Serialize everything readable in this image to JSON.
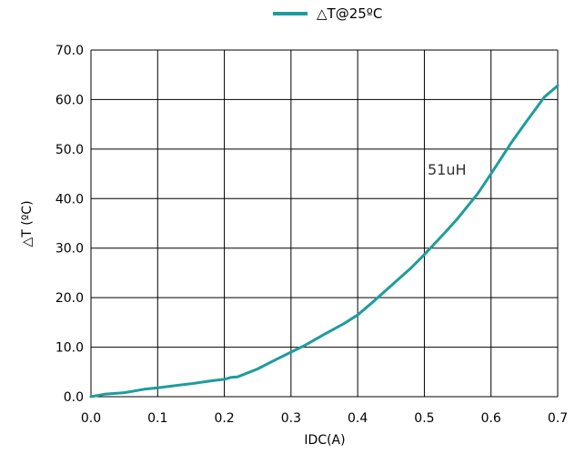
{
  "chart_data": {
    "type": "line",
    "xlabel": "IDC(A)",
    "ylabel": "△T (ºC)",
    "xlim": [
      0.0,
      0.7
    ],
    "ylim": [
      0.0,
      70.0
    ],
    "x_ticks": [
      "0.0",
      "0.1",
      "0.2",
      "0.3",
      "0.4",
      "0.5",
      "0.6",
      "0.7"
    ],
    "y_ticks": [
      "0.0",
      "10.0",
      "20.0",
      "30.0",
      "40.0",
      "50.0",
      "60.0",
      "70.0"
    ],
    "grid": true,
    "legend_position": "top-center",
    "annotation": "51uH",
    "series": [
      {
        "name": "△T@25ºC",
        "color": "#1f9c9c",
        "x": [
          0.0,
          0.02,
          0.05,
          0.08,
          0.1,
          0.13,
          0.15,
          0.18,
          0.2,
          0.21,
          0.22,
          0.25,
          0.27,
          0.3,
          0.32,
          0.35,
          0.38,
          0.4,
          0.42,
          0.45,
          0.48,
          0.5,
          0.53,
          0.55,
          0.58,
          0.6,
          0.63,
          0.65,
          0.68,
          0.7
        ],
        "y": [
          0.0,
          0.5,
          0.8,
          1.5,
          1.8,
          2.3,
          2.6,
          3.2,
          3.5,
          3.9,
          4.0,
          5.6,
          7.0,
          9.0,
          10.3,
          12.6,
          14.8,
          16.5,
          18.8,
          22.4,
          26.0,
          28.7,
          33.0,
          36.0,
          41.0,
          45.0,
          51.2,
          55.0,
          60.5,
          62.8
        ]
      }
    ]
  }
}
